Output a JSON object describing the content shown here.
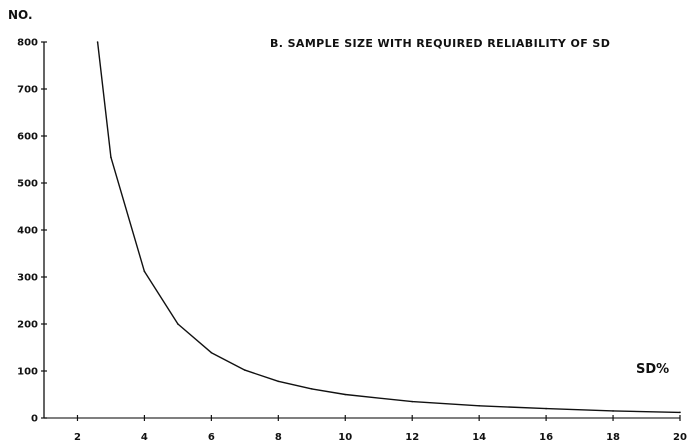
{
  "chart_data": {
    "type": "line",
    "title": "B. SAMPLE SIZE WITH REQUIRED RELIABILITY OF SD",
    "xlabel": "SD%",
    "ylabel": "NO.",
    "xlim": [
      1,
      20
    ],
    "ylim": [
      0,
      800
    ],
    "x_ticks": [
      2,
      4,
      6,
      8,
      10,
      12,
      14,
      16,
      18,
      20
    ],
    "y_ticks": [
      0,
      100,
      200,
      300,
      400,
      500,
      600,
      700,
      800
    ],
    "grid": false,
    "series": [
      {
        "x": [
          2.6,
          3,
          4,
          5,
          6,
          7,
          8,
          9,
          10,
          12,
          14,
          16,
          18,
          20
        ],
        "values": [
          800,
          555,
          312,
          200,
          139,
          102,
          78,
          62,
          50,
          35,
          26,
          20,
          15,
          12
        ]
      }
    ]
  }
}
